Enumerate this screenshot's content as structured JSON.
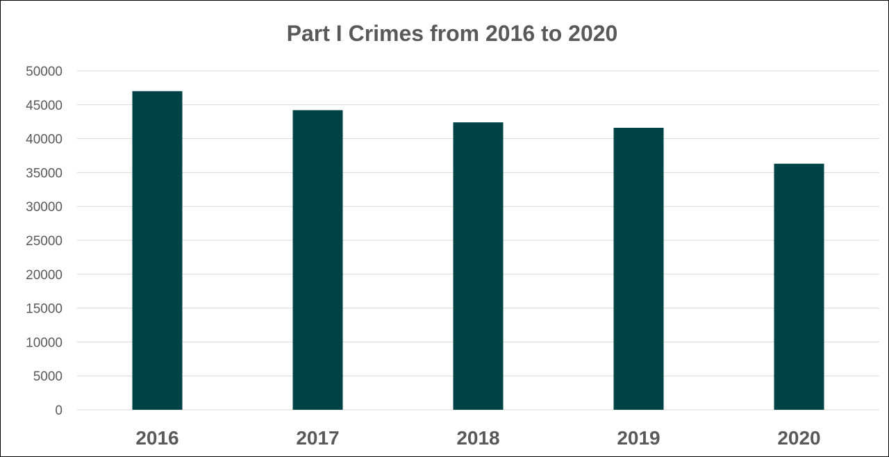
{
  "chart_data": {
    "type": "bar",
    "title": "Part I Crimes from 2016 to 2020",
    "xlabel": "",
    "ylabel": "",
    "categories": [
      "2016",
      "2017",
      "2018",
      "2019",
      "2020"
    ],
    "values": [
      47000,
      44200,
      42400,
      41600,
      36300
    ],
    "ylim": [
      0,
      50000
    ],
    "yticks": [
      0,
      5000,
      10000,
      15000,
      20000,
      25000,
      30000,
      35000,
      40000,
      45000,
      50000
    ],
    "grid": true,
    "legend": "none",
    "bar_color": "#004346"
  }
}
